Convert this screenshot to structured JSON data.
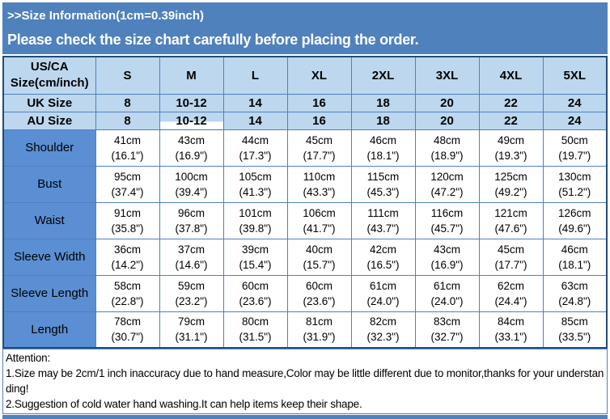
{
  "banner": {
    "line1": ">>Size Information(1cm=0.39inch)",
    "line2": "Please check the size chart carefully before placing the order."
  },
  "table": {
    "corner": {
      "line1": "US/CA",
      "line2": "Size(cm/inch)"
    },
    "sizes": [
      "S",
      "M",
      "L",
      "XL",
      "2XL",
      "3XL",
      "4XL",
      "5XL"
    ],
    "rows": [
      {
        "type": "size",
        "label": "UK Size",
        "values": [
          "8",
          "10-12",
          "14",
          "16",
          "18",
          "20",
          "22",
          "24"
        ]
      },
      {
        "type": "size",
        "label": "AU Size",
        "values": [
          "8",
          "10-12",
          "14",
          "16",
          "18",
          "20",
          "22",
          "24"
        ]
      },
      {
        "type": "measure",
        "label": "Shoulder",
        "cm": [
          "41cm",
          "43cm",
          "44cm",
          "45cm",
          "46cm",
          "48cm",
          "49cm",
          "50cm"
        ],
        "inch": [
          "(16.1\")",
          "(16.9\")",
          "(17.3\")",
          "(17.7\")",
          "(18.1\")",
          "(18.9\")",
          "(19.3\")",
          "(19.7\")"
        ]
      },
      {
        "type": "measure",
        "label": "Bust",
        "cm": [
          "95cm",
          "100cm",
          "105cm",
          "110cm",
          "115cm",
          "120cm",
          "125cm",
          "130cm"
        ],
        "inch": [
          "(37.4\")",
          "(39.4\")",
          "(41.3\")",
          "(43.3\")",
          "(45.3\")",
          "(47.2\")",
          "(49.2\")",
          "(51.2\")"
        ]
      },
      {
        "type": "measure",
        "label": "Waist",
        "cm": [
          "91cm",
          "96cm",
          "101cm",
          "106cm",
          "111cm",
          "116cm",
          "121cm",
          "126cm"
        ],
        "inch": [
          "(35.8\")",
          "(37.8\")",
          "(39.8\")",
          "(41.7\")",
          "(43.7\")",
          "(45.7\")",
          "(47.6\")",
          "(49.6\")"
        ]
      },
      {
        "type": "measure",
        "label": "Sleeve Width",
        "cm": [
          "36cm",
          "37cm",
          "39cm",
          "40cm",
          "42cm",
          "43cm",
          "45cm",
          "46cm"
        ],
        "inch": [
          "(14.2\")",
          "(14.6\")",
          "(15.4\")",
          "(15.7\")",
          "(16.5\")",
          "(16.9\")",
          "(17.7\")",
          "(18.1\")"
        ]
      },
      {
        "type": "measure",
        "label": "Sleeve Length",
        "cm": [
          "58cm",
          "59cm",
          "60cm",
          "60cm",
          "61cm",
          "61cm",
          "62cm",
          "63cm"
        ],
        "inch": [
          "(22.8\")",
          "(23.2\")",
          "(23.6\")",
          "(23.6\")",
          "(24.0\")",
          "(24.0\")",
          "(24.4\")",
          "(24.8\")"
        ]
      },
      {
        "type": "measure",
        "label": "Length",
        "cm": [
          "78cm",
          "79cm",
          "80cm",
          "81cm",
          "82cm",
          "83cm",
          "84cm",
          "85cm"
        ],
        "inch": [
          "(30.7\")",
          "(31.1\")",
          "(31.5\")",
          "(31.9\")",
          "(32.3\")",
          "(32.7\")",
          "(33.1\")",
          "(33.5\")"
        ]
      }
    ]
  },
  "attention": {
    "title": "Attention:",
    "note1": "1.Size may be 2cm/1 inch inaccuracy due to hand measure,Color may be little different due to monitor,thanks for your understanding!",
    "note2": "2.Suggestion of cold water hand washing.It can help items keep their shape."
  },
  "colors": {
    "banner_blue": "#4F81BD",
    "header_light_blue": "#BDD7EE",
    "label_blue": "#5B8FD3",
    "grid_blue": "#4F81BD",
    "outer_border": "#1F4E79"
  }
}
